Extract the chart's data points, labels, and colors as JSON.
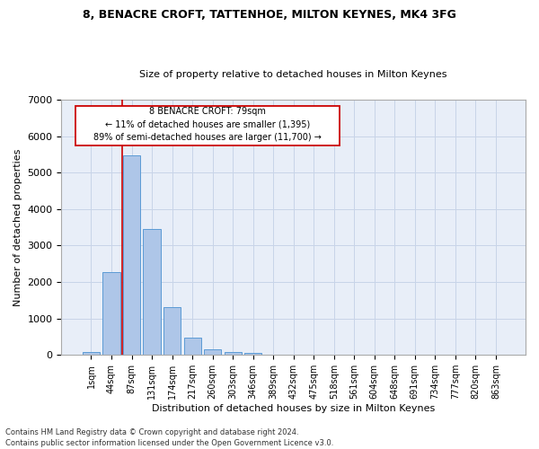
{
  "title_line1": "8, BENACRE CROFT, TATTENHOE, MILTON KEYNES, MK4 3FG",
  "title_line2": "Size of property relative to detached houses in Milton Keynes",
  "xlabel": "Distribution of detached houses by size in Milton Keynes",
  "ylabel": "Number of detached properties",
  "footer_line1": "Contains HM Land Registry data © Crown copyright and database right 2024.",
  "footer_line2": "Contains public sector information licensed under the Open Government Licence v3.0.",
  "bar_labels": [
    "1sqm",
    "44sqm",
    "87sqm",
    "131sqm",
    "174sqm",
    "217sqm",
    "260sqm",
    "303sqm",
    "346sqm",
    "389sqm",
    "432sqm",
    "475sqm",
    "518sqm",
    "561sqm",
    "604sqm",
    "648sqm",
    "691sqm",
    "734sqm",
    "777sqm",
    "820sqm",
    "863sqm"
  ],
  "bar_values": [
    80,
    2280,
    5480,
    3450,
    1320,
    470,
    160,
    80,
    45,
    0,
    0,
    0,
    0,
    0,
    0,
    0,
    0,
    0,
    0,
    0,
    0
  ],
  "bar_color": "#aec6e8",
  "bar_edgecolor": "#5b9bd5",
  "annotation_line1": "8 BENACRE CROFT: 79sqm",
  "annotation_line2": "← 11% of detached houses are smaller (1,395)",
  "annotation_line3": "89% of semi-detached houses are larger (11,700) →",
  "vline_x_index": 1.55,
  "vline_color": "#cc0000",
  "grid_color": "#c8d4e8",
  "background_color": "#e8eef8",
  "ylim": [
    0,
    7000
  ],
  "yticks": [
    0,
    1000,
    2000,
    3000,
    4000,
    5000,
    6000,
    7000
  ],
  "title_fontsize": 9,
  "subtitle_fontsize": 8,
  "ylabel_fontsize": 8,
  "xlabel_fontsize": 8,
  "tick_fontsize": 7,
  "footer_fontsize": 6
}
